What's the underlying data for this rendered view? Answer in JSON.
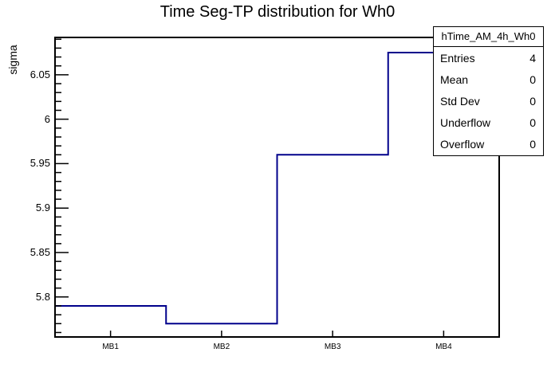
{
  "title": "Time Seg-TP distribution for Wh0",
  "y_axis": {
    "title": "sigma"
  },
  "stats_box": {
    "title": "hTime_AM_4h_Wh0",
    "rows": [
      {
        "label": "Entries",
        "value": "4"
      },
      {
        "label": "Mean",
        "value": "0"
      },
      {
        "label": "Std Dev",
        "value": "0"
      },
      {
        "label": "Underflow",
        "value": "0"
      },
      {
        "label": "Overflow",
        "value": "0"
      }
    ]
  },
  "chart_data": {
    "type": "line",
    "style": "step-histogram",
    "title": "Time Seg-TP distribution for Wh0",
    "categories": [
      "MB1",
      "MB2",
      "MB3",
      "MB4"
    ],
    "values": [
      5.79,
      5.77,
      5.96,
      6.075
    ],
    "xlabel": "",
    "ylabel": "sigma",
    "ylim": [
      5.755,
      6.092
    ],
    "y_major_tick_step": 0.05,
    "y_minor_tick_step": 0.01,
    "y_tick_labels": [
      "5.8",
      "5.85",
      "5.9",
      "5.95",
      "6",
      "6.05"
    ],
    "grid": false,
    "legend": false,
    "line_color": "#00008b",
    "frame_color": "#000000",
    "background": "#ffffff"
  }
}
